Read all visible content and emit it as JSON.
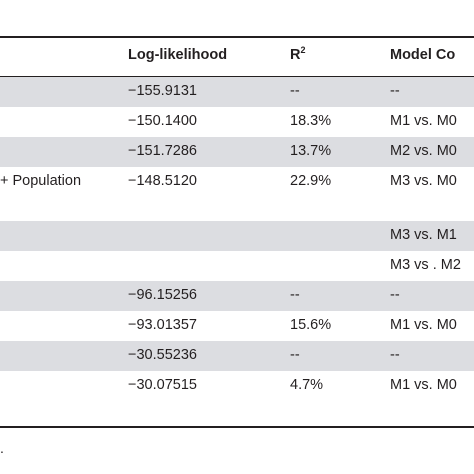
{
  "table": {
    "headers": {
      "log_likelihood": "Log-likelihood",
      "r2_base": "R",
      "r2_sup": "2",
      "model_comparison": "Model Co"
    },
    "rows": [
      {
        "predictor": "",
        "ll": "−155.9131",
        "r2": "--",
        "comparison": "--",
        "shade": true
      },
      {
        "predictor": "",
        "ll": "−150.1400",
        "r2": "18.3%",
        "comparison": "M1 vs. M0",
        "shade": false
      },
      {
        "predictor": "",
        "ll": "−151.7286",
        "r2": "13.7%",
        "comparison": "M2 vs. M0",
        "shade": true
      },
      {
        "predictor": "+ Population",
        "ll": "−148.5120",
        "r2": "22.9%",
        "comparison": "M3 vs. M0",
        "shade": false,
        "tall": true
      },
      {
        "predictor": "",
        "ll": "",
        "r2": "",
        "comparison": "M3 vs. M1",
        "shade": true
      },
      {
        "predictor": "",
        "ll": "",
        "r2": "",
        "comparison": "M3 vs . M2",
        "shade": false
      },
      {
        "predictor": "",
        "ll": "−96.15256",
        "r2": "--",
        "comparison": "--",
        "shade": true
      },
      {
        "predictor": "",
        "ll": "−93.01357",
        "r2": "15.6%",
        "comparison": "M1 vs. M0",
        "shade": false
      },
      {
        "predictor": "",
        "ll": "−30.55236",
        "r2": "--",
        "comparison": "--",
        "shade": true
      },
      {
        "predictor": "",
        "ll": "−30.07515",
        "r2": "4.7%",
        "comparison": "M1 vs. M0",
        "shade": false
      }
    ],
    "footnote": "."
  }
}
